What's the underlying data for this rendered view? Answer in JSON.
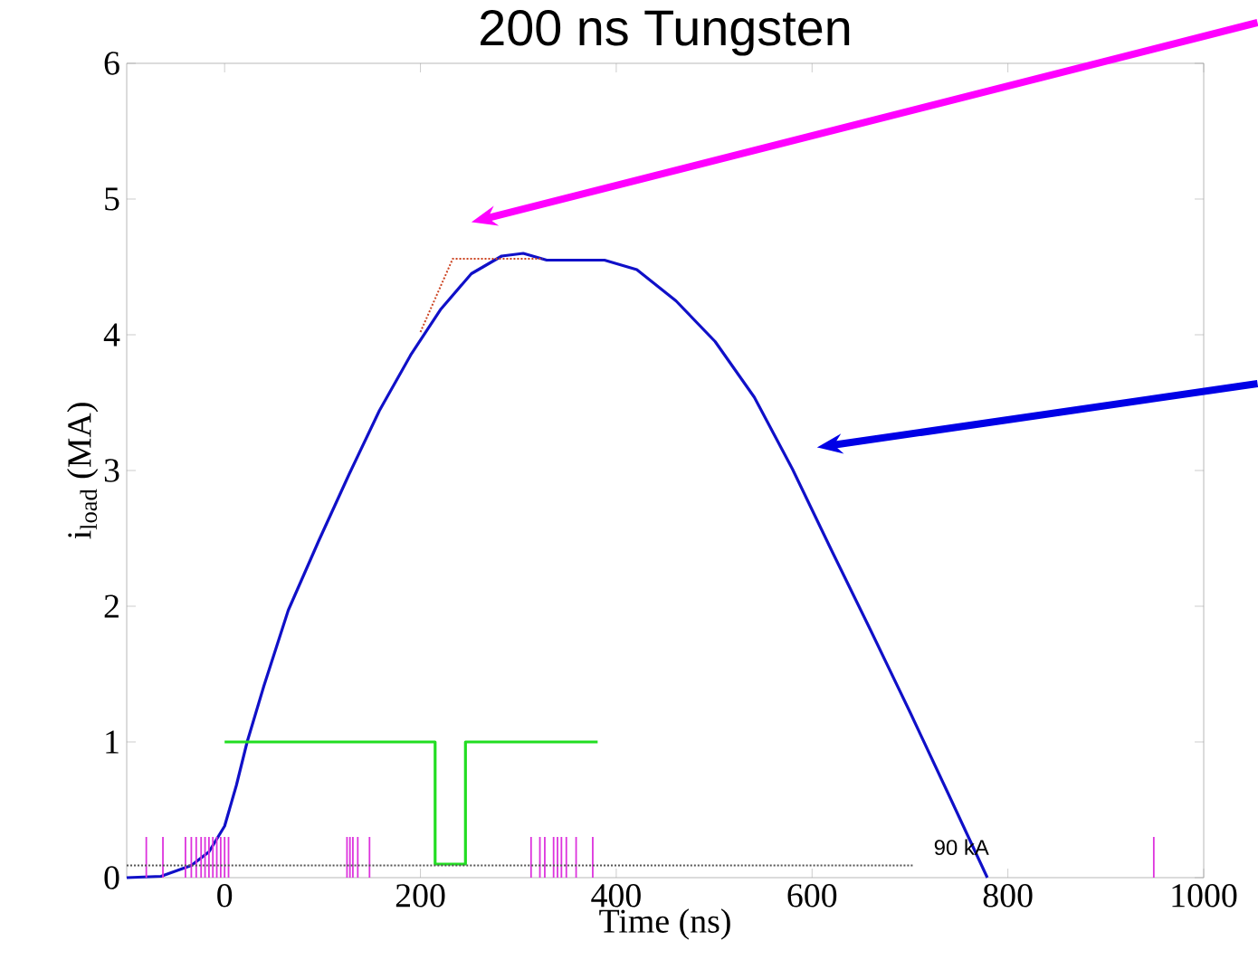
{
  "chart_data": {
    "type": "line",
    "title": "200 ns Tungsten",
    "xlabel": "Time (ns)",
    "ylabel": "i$_{load}$ (MA)",
    "xlim": [
      -100,
      1000
    ],
    "xticks": [
      0,
      200,
      400,
      600,
      800,
      1000
    ],
    "ylim": [
      0,
      6
    ],
    "yticks": [
      0,
      1,
      2,
      3,
      4,
      5,
      6
    ],
    "grid": false,
    "legend": false,
    "marker": "none",
    "series": [
      {
        "color": "#1010c8",
        "line_style": "solid",
        "x": [
          -100,
          -65,
          -34,
          -16,
          0,
          12,
          23,
          40,
          65,
          96,
          127,
          158,
          190,
          221,
          252,
          283,
          305,
          329,
          388,
          421,
          461,
          501,
          541,
          580,
          620,
          660,
          700,
          739,
          779
        ],
        "values": [
          0,
          0.01,
          0.09,
          0.19,
          0.38,
          0.68,
          1.0,
          1.41,
          1.97,
          2.48,
          2.97,
          3.44,
          3.85,
          4.19,
          4.45,
          4.58,
          4.6,
          4.55,
          4.55,
          4.48,
          4.25,
          3.95,
          3.54,
          3.01,
          2.41,
          1.82,
          1.22,
          0.62,
          0
        ]
      },
      {
        "color": "#cc4422",
        "line_style": "dotted",
        "x": [
          200,
          233,
          325
        ],
        "values": [
          4.02,
          4.56,
          4.56
        ]
      },
      {
        "color": "#22dd22",
        "line_style": "solid",
        "x": [
          0,
          215,
          215,
          246,
          246,
          381
        ],
        "values": [
          1,
          1,
          0.1,
          0.1,
          1,
          1
        ]
      },
      {
        "type": "bar",
        "color": "#dd33dd",
        "x": [
          -80,
          -63,
          -40,
          -34,
          -29,
          -24,
          -20,
          -16,
          -12,
          -8,
          -4,
          0,
          4,
          125,
          128,
          131,
          136,
          148,
          313,
          322,
          327,
          336,
          340,
          344,
          349,
          359,
          376,
          949
        ],
        "values": [
          0.3,
          0.3,
          0.3,
          0.3,
          0.3,
          0.3,
          0.3,
          0.3,
          0.3,
          0.3,
          0.3,
          0.3,
          0.3,
          0.3,
          0.3,
          0.3,
          0.3,
          0.3,
          0.3,
          0.3,
          0.3,
          0.3,
          0.3,
          0.3,
          0.3,
          0.3,
          0.3,
          0.3
        ]
      },
      {
        "color": "#555555",
        "line_style": "dotted",
        "x": [
          -100,
          704
        ],
        "values": [
          0.09,
          0.09
        ]
      }
    ],
    "annotations": [
      "90 kA"
    ]
  }
}
